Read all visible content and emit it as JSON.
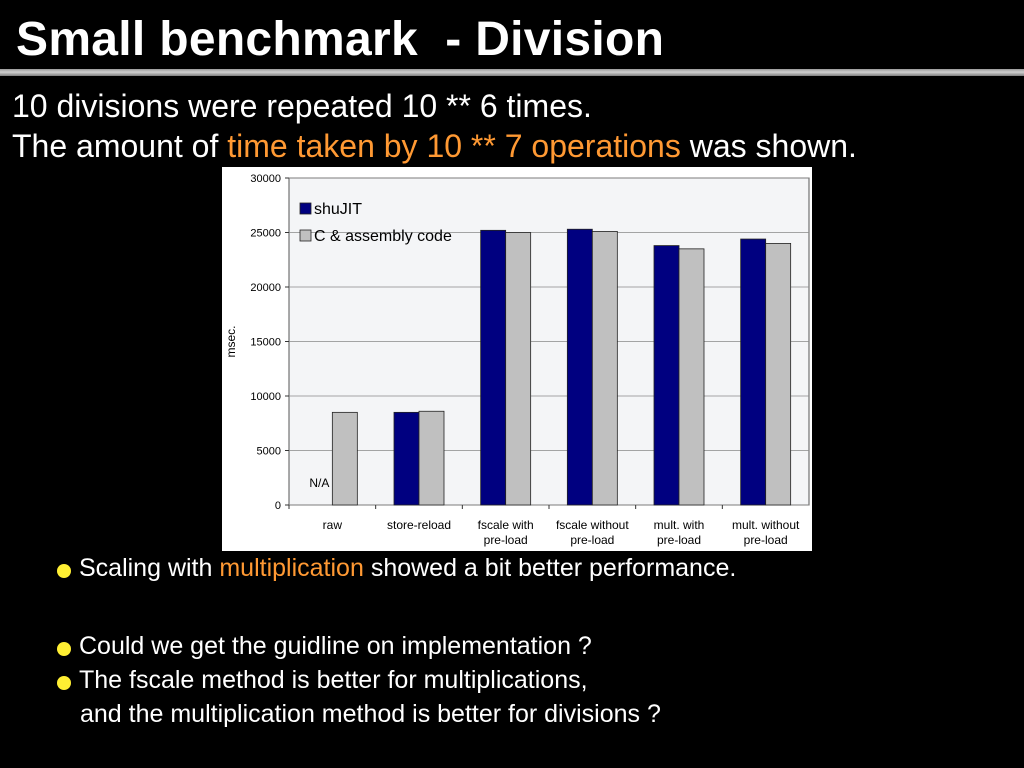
{
  "slide": {
    "title": "Small benchmark  - Division",
    "line1": "10 divisions were repeated 10 ** 6 times.",
    "line2_pre": "The amount of ",
    "line2_accent": "time taken by 10 ** 7 operations",
    "line2_post": " was shown.",
    "bullet1_pre": "Scaling with ",
    "bullet1_accent": "multiplication",
    "bullet1_post": " showed a bit better performance.",
    "bullet2": "Could we get the guidline on implementation ?",
    "bullet3_line1": "The fscale method is better for multiplications,",
    "bullet3_line2": "and the multiplication method is better for divisions ?"
  },
  "colors": {
    "accent": "#ff9933",
    "bullet": "#ffef33",
    "series_shujit": "#000080",
    "series_c": "#c0c0c0"
  },
  "chart_data": {
    "type": "bar",
    "title": "",
    "xlabel": "",
    "ylabel": "msec.",
    "ylim": [
      0,
      30000
    ],
    "yticks": [
      0,
      5000,
      10000,
      15000,
      20000,
      25000,
      30000
    ],
    "categories": [
      [
        "raw"
      ],
      [
        "store-reload"
      ],
      [
        "fscale with",
        "pre-load"
      ],
      [
        "fscale without",
        "pre-load"
      ],
      [
        "mult. with",
        "pre-load"
      ],
      [
        "mult. without",
        "pre-load"
      ]
    ],
    "series": [
      {
        "name": "shuJIT",
        "color": "#000080",
        "values": [
          null,
          8500,
          25200,
          25300,
          23800,
          24400
        ]
      },
      {
        "name": "C & assembly code",
        "color": "#c0c0c0",
        "values": [
          8500,
          8600,
          25000,
          25100,
          23500,
          24000
        ]
      }
    ],
    "annotations": [
      {
        "text": "N/A",
        "category": 0,
        "series": 0
      }
    ],
    "legend": "top-left",
    "grid": true
  }
}
